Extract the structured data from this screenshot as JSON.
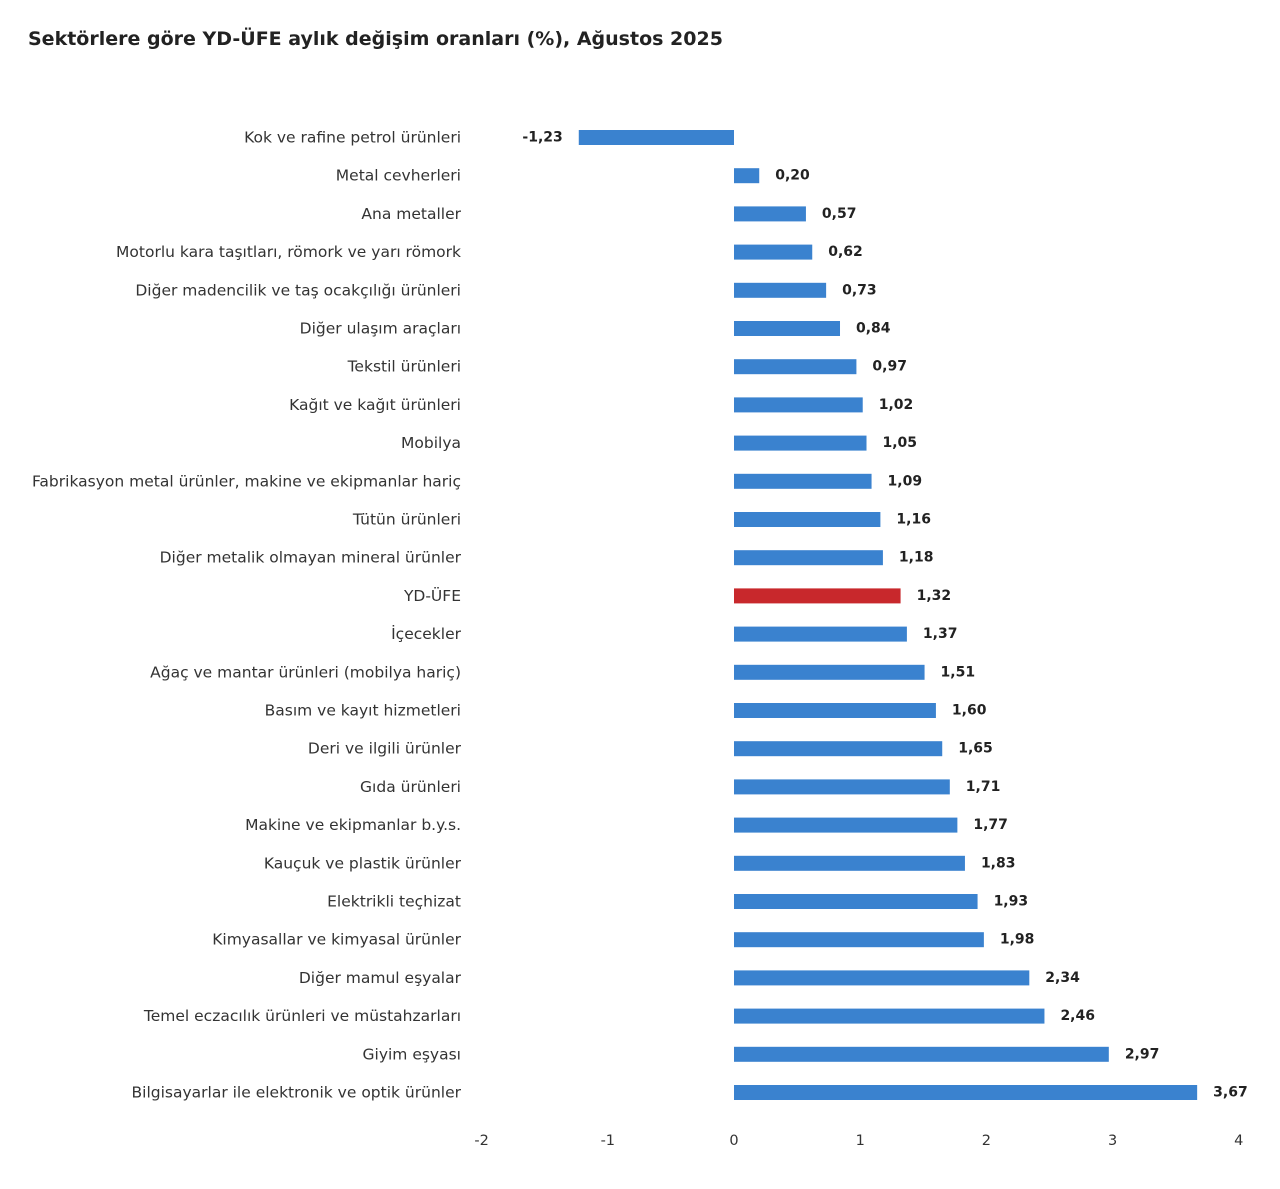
{
  "chart_data": {
    "type": "bar",
    "orientation": "horizontal",
    "title": "Sektörlere göre YD-ÜFE aylık değişim oranları (%), Ağustos 2025",
    "xlabel": "",
    "ylabel": "",
    "xlim": [
      -2,
      4
    ],
    "ticks": [
      -2,
      -1,
      0,
      1,
      2,
      3,
      4
    ],
    "tick_labels": [
      "-2",
      "-1",
      "0",
      "1",
      "2",
      "3",
      "4"
    ],
    "grid": false,
    "legend": "none",
    "colors": {
      "default": "#3a82cf",
      "highlight": "#c8282c"
    },
    "highlight_category": "YD-ÜFE",
    "categories": [
      "Kok ve rafine petrol ürünleri",
      "Metal cevherleri",
      "Ana metaller",
      "Motorlu kara taşıtları, römork ve yarı römork",
      "Diğer madencilik ve taş ocakçılığı ürünleri",
      "Diğer ulaşım araçları",
      "Tekstil ürünleri",
      "Kağıt ve kağıt ürünleri",
      "Mobilya",
      "Fabrikasyon metal ürünler, makine ve ekipmanlar hariç",
      "Tütün ürünleri",
      "Diğer metalik olmayan mineral ürünler",
      "YD-ÜFE",
      "İçecekler",
      "Ağaç ve mantar ürünleri (mobilya hariç)",
      "Basım ve kayıt hizmetleri",
      "Deri ve ilgili ürünler",
      "Gıda ürünleri",
      "Makine ve ekipmanlar b.y.s.",
      "Kauçuk ve plastik ürünler",
      "Elektrikli teçhizat",
      "Kimyasallar ve kimyasal ürünler",
      "Diğer mamul eşyalar",
      "Temel eczacılık ürünleri ve müstahzarları",
      "Giyim eşyası",
      "Bilgisayarlar ile elektronik ve optik ürünler"
    ],
    "values": [
      -1.23,
      0.2,
      0.57,
      0.62,
      0.73,
      0.84,
      0.97,
      1.02,
      1.05,
      1.09,
      1.16,
      1.18,
      1.32,
      1.37,
      1.51,
      1.6,
      1.65,
      1.71,
      1.77,
      1.83,
      1.93,
      1.98,
      2.34,
      2.46,
      2.97,
      3.67
    ],
    "value_labels": [
      "-1,23",
      "0,20",
      "0,57",
      "0,62",
      "0,73",
      "0,84",
      "0,97",
      "1,02",
      "1,05",
      "1,09",
      "1,16",
      "1,18",
      "1,32",
      "1,37",
      "1,51",
      "1,60",
      "1,65",
      "1,71",
      "1,77",
      "1,83",
      "1,93",
      "1,98",
      "2,34",
      "2,46",
      "2,97",
      "3,67"
    ]
  }
}
